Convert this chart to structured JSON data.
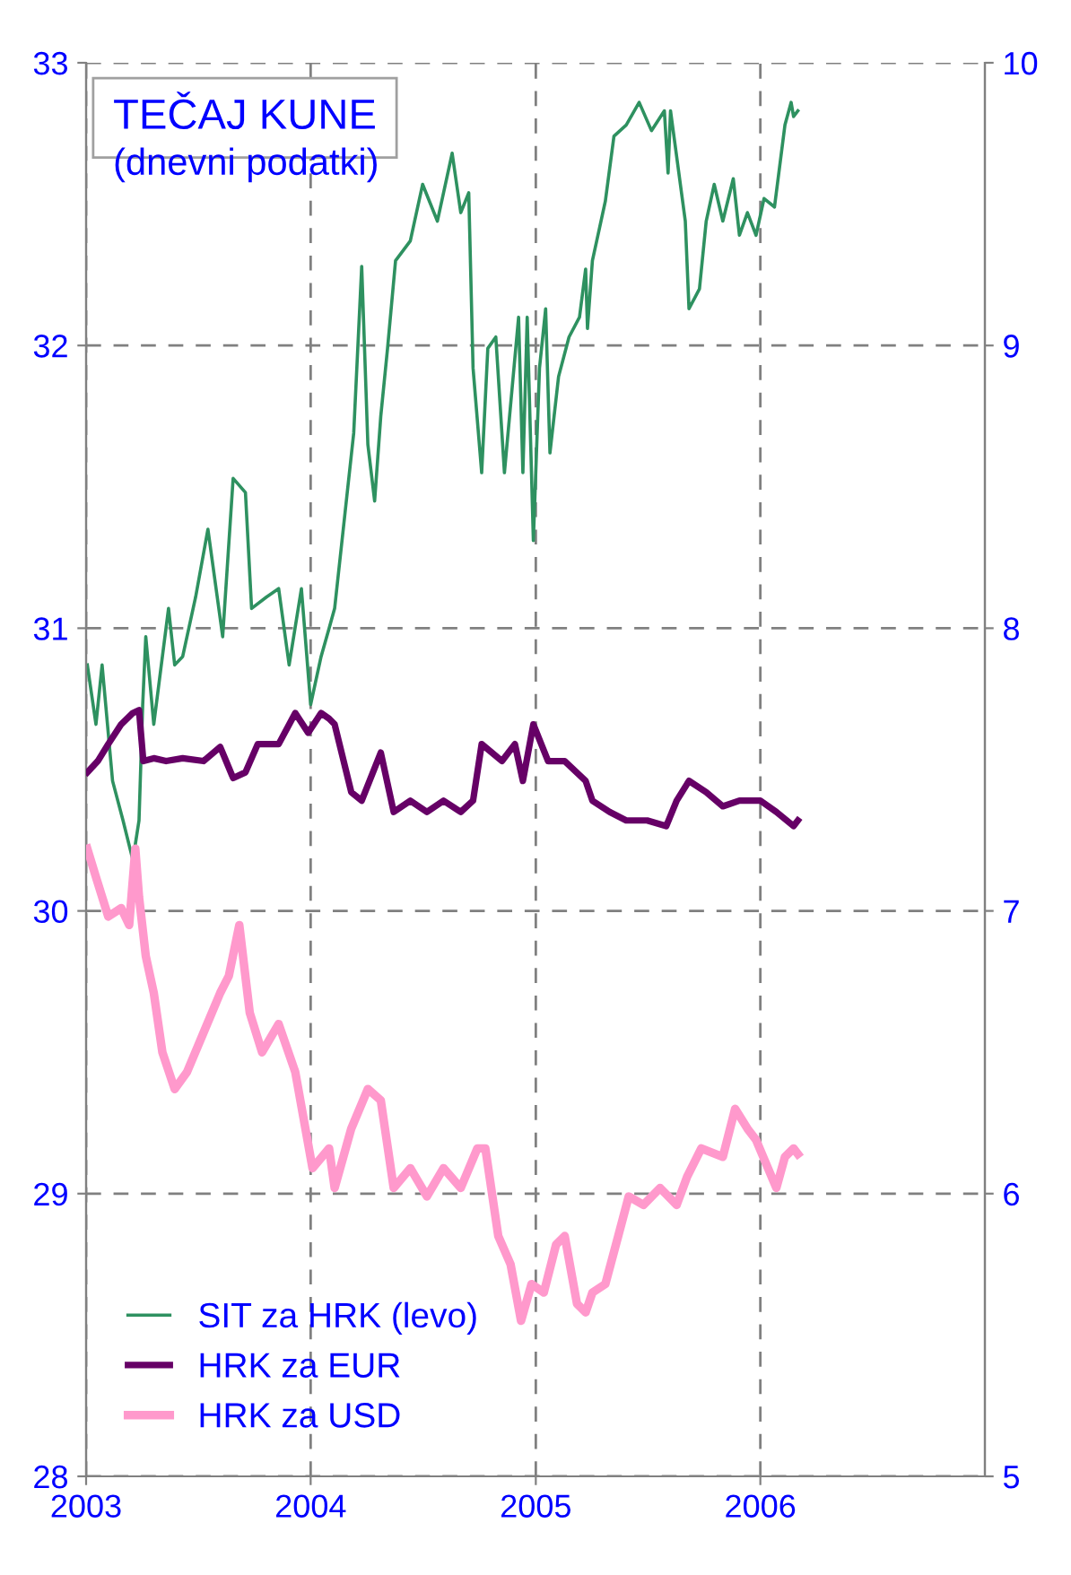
{
  "chart_data": {
    "type": "line",
    "title": "TEČAJ KUNE",
    "subtitle": "(dnevni podatki)",
    "xlim": [
      "2003-01-01",
      "2007-01-01"
    ],
    "xticks": [
      "2003",
      "2004",
      "2005",
      "2006"
    ],
    "ylim": [
      28,
      33
    ],
    "yticks": [
      28,
      29,
      30,
      31,
      32,
      33
    ],
    "y2lim": [
      5,
      10
    ],
    "y2ticks": [
      5,
      6,
      7,
      8,
      9,
      10
    ],
    "grid": true,
    "legend": "bottom left",
    "line_style": "solid",
    "series": [
      {
        "name": "SIT za HRK (levo)",
        "color": "#2e9160",
        "x": [
          "2003-01-03",
          "2003-01-17",
          "2003-01-27",
          "2003-02-13",
          "2003-03-02",
          "2003-03-18",
          "2003-03-28",
          "2003-04-03",
          "2003-04-08",
          "2003-04-21",
          "2003-05-05",
          "2003-05-15",
          "2003-05-25",
          "2003-06-07",
          "2003-06-28",
          "2003-07-18",
          "2003-08-11",
          "2003-08-28",
          "2003-09-17",
          "2003-09-27",
          "2003-10-21",
          "2003-11-10",
          "2003-11-27",
          "2003-12-17",
          "2004-01-01",
          "2004-01-18",
          "2004-01-31",
          "2004-02-09",
          "2004-02-26",
          "2004-03-11",
          "2004-03-24",
          "2004-04-03",
          "2004-04-14",
          "2004-04-24",
          "2004-05-05",
          "2004-05-18",
          "2004-06-11",
          "2004-07-01",
          "2004-07-25",
          "2004-08-18",
          "2004-09-01",
          "2004-09-14",
          "2004-09-21",
          "2004-10-05",
          "2004-10-15",
          "2004-10-28",
          "2004-11-11",
          "2004-12-04",
          "2004-12-11",
          "2004-12-18",
          "2004-12-28",
          "2005-01-07",
          "2005-01-17",
          "2005-01-24",
          "2005-02-07",
          "2005-02-24",
          "2005-03-13",
          "2005-03-23",
          "2005-03-26",
          "2005-04-03",
          "2005-04-24",
          "2005-05-08",
          "2005-05-28",
          "2005-06-18",
          "2005-07-08",
          "2005-07-29",
          "2005-08-04",
          "2005-08-08",
          "2005-09-01",
          "2005-09-07",
          "2005-09-24",
          "2005-10-05",
          "2005-10-18",
          "2005-11-01",
          "2005-11-18",
          "2005-11-28",
          "2005-12-11",
          "2005-12-25",
          "2006-01-07",
          "2006-01-24",
          "2006-02-10",
          "2006-02-20",
          "2006-02-24",
          "2006-03-03"
        ],
        "values": [
          30.87,
          30.66,
          30.87,
          30.46,
          30.32,
          30.18,
          30.32,
          30.73,
          30.97,
          30.66,
          30.9,
          31.07,
          30.87,
          30.9,
          31.11,
          31.35,
          30.97,
          31.53,
          31.48,
          31.07,
          31.11,
          31.14,
          30.87,
          31.14,
          30.73,
          30.9,
          31.0,
          31.07,
          31.41,
          31.69,
          32.28,
          31.65,
          31.45,
          31.75,
          31.99,
          32.3,
          32.37,
          32.57,
          32.44,
          32.68,
          32.47,
          32.54,
          31.92,
          31.55,
          31.99,
          32.03,
          31.55,
          32.1,
          31.55,
          32.1,
          31.31,
          31.92,
          32.13,
          31.62,
          31.89,
          32.03,
          32.1,
          32.27,
          32.06,
          32.3,
          32.51,
          32.74,
          32.78,
          32.86,
          32.76,
          32.83,
          32.61,
          32.83,
          32.44,
          32.13,
          32.2,
          32.44,
          32.57,
          32.44,
          32.59,
          32.39,
          32.47,
          32.39,
          32.52,
          32.49,
          32.78,
          32.86,
          32.81,
          32.83
        ]
      },
      {
        "name": "HRK za EUR",
        "color": "#660066",
        "axis": "y2",
        "x": [
          "2003-01-03",
          "2003-01-20",
          "2003-02-06",
          "2003-02-27",
          "2003-03-18",
          "2003-03-28",
          "2003-04-04",
          "2003-04-21",
          "2003-05-11",
          "2003-06-07",
          "2003-07-11",
          "2003-08-07",
          "2003-08-28",
          "2003-09-17",
          "2003-10-07",
          "2003-11-10",
          "2003-12-07",
          "2003-12-28",
          "2004-01-18",
          "2004-01-31",
          "2004-02-09",
          "2004-03-07",
          "2004-03-24",
          "2004-04-24",
          "2004-05-15",
          "2004-06-11",
          "2004-07-08",
          "2004-08-04",
          "2004-09-01",
          "2004-09-21",
          "2004-10-05",
          "2004-11-07",
          "2004-11-28",
          "2004-12-11",
          "2004-12-28",
          "2005-01-21",
          "2005-02-17",
          "2005-03-23",
          "2005-04-03",
          "2005-05-01",
          "2005-05-28",
          "2005-07-01",
          "2005-08-01",
          "2005-08-18",
          "2005-09-07",
          "2005-10-05",
          "2005-11-01",
          "2005-11-28",
          "2006-01-01",
          "2006-01-27",
          "2006-02-24",
          "2006-03-03"
        ],
        "values": [
          7.49,
          7.53,
          7.59,
          7.66,
          7.7,
          7.71,
          7.53,
          7.54,
          7.53,
          7.54,
          7.53,
          7.58,
          7.47,
          7.49,
          7.59,
          7.59,
          7.7,
          7.63,
          7.7,
          7.68,
          7.66,
          7.42,
          7.39,
          7.56,
          7.35,
          7.39,
          7.35,
          7.39,
          7.35,
          7.39,
          7.59,
          7.53,
          7.59,
          7.46,
          7.66,
          7.53,
          7.53,
          7.46,
          7.39,
          7.35,
          7.32,
          7.32,
          7.3,
          7.39,
          7.46,
          7.42,
          7.37,
          7.39,
          7.39,
          7.35,
          7.3,
          7.32
        ]
      },
      {
        "name": "HRK za USD",
        "color": "#ff99cc",
        "axis": "y2",
        "x": [
          "2003-01-03",
          "2003-01-17",
          "2003-02-06",
          "2003-02-27",
          "2003-03-12",
          "2003-03-22",
          "2003-03-28",
          "2003-04-08",
          "2003-04-21",
          "2003-05-05",
          "2003-05-25",
          "2003-06-14",
          "2003-07-11",
          "2003-08-07",
          "2003-08-21",
          "2003-09-07",
          "2003-09-24",
          "2003-10-14",
          "2003-11-10",
          "2003-12-07",
          "2004-01-04",
          "2004-01-31",
          "2004-02-09",
          "2004-03-07",
          "2004-04-03",
          "2004-04-24",
          "2004-05-15",
          "2004-06-11",
          "2004-07-08",
          "2004-08-04",
          "2004-09-01",
          "2004-09-28",
          "2004-10-11",
          "2004-11-01",
          "2004-11-21",
          "2004-12-08",
          "2004-12-25",
          "2005-01-14",
          "2005-02-03",
          "2005-02-17",
          "2005-03-09",
          "2005-03-23",
          "2005-04-03",
          "2005-04-24",
          "2005-05-15",
          "2005-06-01",
          "2005-06-25",
          "2005-07-22",
          "2005-08-18",
          "2005-09-04",
          "2005-09-27",
          "2005-11-01",
          "2005-11-21",
          "2005-12-11",
          "2005-12-25",
          "2006-01-27",
          "2006-02-10",
          "2006-02-24",
          "2006-03-03"
        ],
        "values": [
          7.22,
          7.12,
          6.98,
          7.01,
          6.95,
          7.22,
          7.05,
          6.84,
          6.71,
          6.5,
          6.37,
          6.43,
          6.57,
          6.71,
          6.77,
          6.95,
          6.64,
          6.5,
          6.6,
          6.43,
          6.09,
          6.16,
          6.02,
          6.23,
          6.37,
          6.33,
          6.02,
          6.09,
          5.99,
          6.09,
          6.02,
          6.16,
          6.16,
          5.85,
          5.75,
          5.55,
          5.68,
          5.65,
          5.82,
          5.85,
          5.61,
          5.58,
          5.65,
          5.68,
          5.85,
          5.99,
          5.96,
          6.02,
          5.96,
          6.06,
          6.16,
          6.13,
          6.3,
          6.23,
          6.19,
          6.02,
          6.13,
          6.16,
          6.14
        ]
      }
    ]
  }
}
